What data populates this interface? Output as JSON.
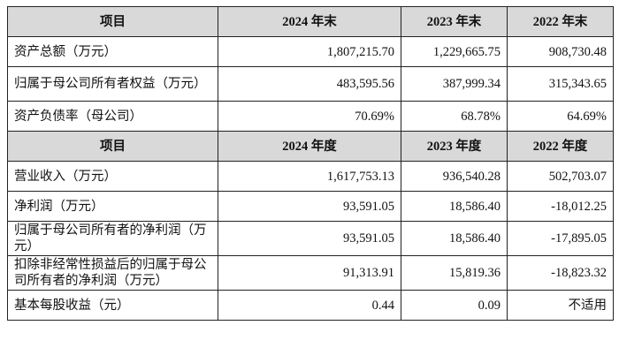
{
  "header1": [
    "项目",
    "2024 年末",
    "2023 年末",
    "2022 年末"
  ],
  "rows1": [
    {
      "label": "资产总额（万元）",
      "v2024": "1,807,215.70",
      "v2023": "1,229,665.75",
      "v2022": "908,730.48"
    },
    {
      "label": "归属于母公司所有者权益（万元）",
      "v2024": "483,595.56",
      "v2023": "387,999.34",
      "v2022": "315,343.65"
    },
    {
      "label": "资产负债率（母公司）",
      "v2024": "70.69%",
      "v2023": "68.78%",
      "v2022": "64.69%"
    }
  ],
  "header2": [
    "项目",
    "2024 年度",
    "2023 年度",
    "2022 年度"
  ],
  "rows2": [
    {
      "label": "营业收入（万元）",
      "v2024": "1,617,753.13",
      "v2023": "936,540.28",
      "v2022": "502,703.07"
    },
    {
      "label": "净利润（万元）",
      "v2024": "93,591.05",
      "v2023": "18,586.40",
      "v2022": "-18,012.25"
    },
    {
      "label": "归属于母公司所有者的净利润（万元）",
      "v2024": "93,591.05",
      "v2023": "18,586.40",
      "v2022": "-17,895.05"
    },
    {
      "label": "扣除非经常性损益后的归属于母公司所有者的净利润（万元）",
      "v2024": "91,313.91",
      "v2023": "15,819.36",
      "v2022": "-18,823.32"
    },
    {
      "label": "基本每股收益（元）",
      "v2024": "0.44",
      "v2023": "0.09",
      "v2022": "不适用"
    }
  ]
}
